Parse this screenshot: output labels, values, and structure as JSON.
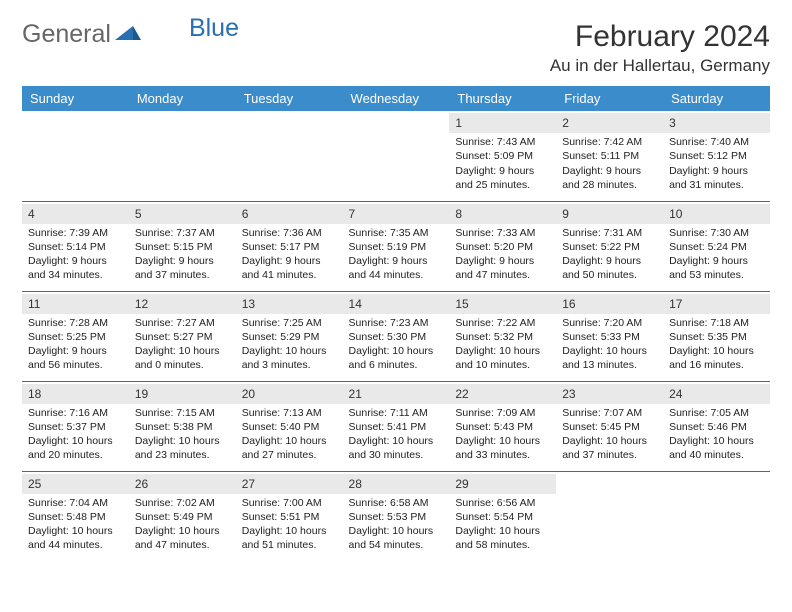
{
  "logo": {
    "part1": "General",
    "part2": "Blue"
  },
  "title": "February 2024",
  "location": "Au in der Hallertau, Germany",
  "weekdays": [
    "Sunday",
    "Monday",
    "Tuesday",
    "Wednesday",
    "Thursday",
    "Friday",
    "Saturday"
  ],
  "header_bg": "#3b8ccb",
  "header_fg": "#ffffff",
  "rule_color": "#2a6fb0",
  "daybar_bg": "#e9e9e9",
  "weeks": [
    [
      null,
      null,
      null,
      null,
      {
        "n": "1",
        "sr": "7:43 AM",
        "ss": "5:09 PM",
        "dl": "9 hours and 25 minutes."
      },
      {
        "n": "2",
        "sr": "7:42 AM",
        "ss": "5:11 PM",
        "dl": "9 hours and 28 minutes."
      },
      {
        "n": "3",
        "sr": "7:40 AM",
        "ss": "5:12 PM",
        "dl": "9 hours and 31 minutes."
      }
    ],
    [
      {
        "n": "4",
        "sr": "7:39 AM",
        "ss": "5:14 PM",
        "dl": "9 hours and 34 minutes."
      },
      {
        "n": "5",
        "sr": "7:37 AM",
        "ss": "5:15 PM",
        "dl": "9 hours and 37 minutes."
      },
      {
        "n": "6",
        "sr": "7:36 AM",
        "ss": "5:17 PM",
        "dl": "9 hours and 41 minutes."
      },
      {
        "n": "7",
        "sr": "7:35 AM",
        "ss": "5:19 PM",
        "dl": "9 hours and 44 minutes."
      },
      {
        "n": "8",
        "sr": "7:33 AM",
        "ss": "5:20 PM",
        "dl": "9 hours and 47 minutes."
      },
      {
        "n": "9",
        "sr": "7:31 AM",
        "ss": "5:22 PM",
        "dl": "9 hours and 50 minutes."
      },
      {
        "n": "10",
        "sr": "7:30 AM",
        "ss": "5:24 PM",
        "dl": "9 hours and 53 minutes."
      }
    ],
    [
      {
        "n": "11",
        "sr": "7:28 AM",
        "ss": "5:25 PM",
        "dl": "9 hours and 56 minutes."
      },
      {
        "n": "12",
        "sr": "7:27 AM",
        "ss": "5:27 PM",
        "dl": "10 hours and 0 minutes."
      },
      {
        "n": "13",
        "sr": "7:25 AM",
        "ss": "5:29 PM",
        "dl": "10 hours and 3 minutes."
      },
      {
        "n": "14",
        "sr": "7:23 AM",
        "ss": "5:30 PM",
        "dl": "10 hours and 6 minutes."
      },
      {
        "n": "15",
        "sr": "7:22 AM",
        "ss": "5:32 PM",
        "dl": "10 hours and 10 minutes."
      },
      {
        "n": "16",
        "sr": "7:20 AM",
        "ss": "5:33 PM",
        "dl": "10 hours and 13 minutes."
      },
      {
        "n": "17",
        "sr": "7:18 AM",
        "ss": "5:35 PM",
        "dl": "10 hours and 16 minutes."
      }
    ],
    [
      {
        "n": "18",
        "sr": "7:16 AM",
        "ss": "5:37 PM",
        "dl": "10 hours and 20 minutes."
      },
      {
        "n": "19",
        "sr": "7:15 AM",
        "ss": "5:38 PM",
        "dl": "10 hours and 23 minutes."
      },
      {
        "n": "20",
        "sr": "7:13 AM",
        "ss": "5:40 PM",
        "dl": "10 hours and 27 minutes."
      },
      {
        "n": "21",
        "sr": "7:11 AM",
        "ss": "5:41 PM",
        "dl": "10 hours and 30 minutes."
      },
      {
        "n": "22",
        "sr": "7:09 AM",
        "ss": "5:43 PM",
        "dl": "10 hours and 33 minutes."
      },
      {
        "n": "23",
        "sr": "7:07 AM",
        "ss": "5:45 PM",
        "dl": "10 hours and 37 minutes."
      },
      {
        "n": "24",
        "sr": "7:05 AM",
        "ss": "5:46 PM",
        "dl": "10 hours and 40 minutes."
      }
    ],
    [
      {
        "n": "25",
        "sr": "7:04 AM",
        "ss": "5:48 PM",
        "dl": "10 hours and 44 minutes."
      },
      {
        "n": "26",
        "sr": "7:02 AM",
        "ss": "5:49 PM",
        "dl": "10 hours and 47 minutes."
      },
      {
        "n": "27",
        "sr": "7:00 AM",
        "ss": "5:51 PM",
        "dl": "10 hours and 51 minutes."
      },
      {
        "n": "28",
        "sr": "6:58 AM",
        "ss": "5:53 PM",
        "dl": "10 hours and 54 minutes."
      },
      {
        "n": "29",
        "sr": "6:56 AM",
        "ss": "5:54 PM",
        "dl": "10 hours and 58 minutes."
      },
      null,
      null
    ]
  ],
  "labels": {
    "sunrise": "Sunrise: ",
    "sunset": "Sunset: ",
    "daylight": "Daylight: "
  }
}
